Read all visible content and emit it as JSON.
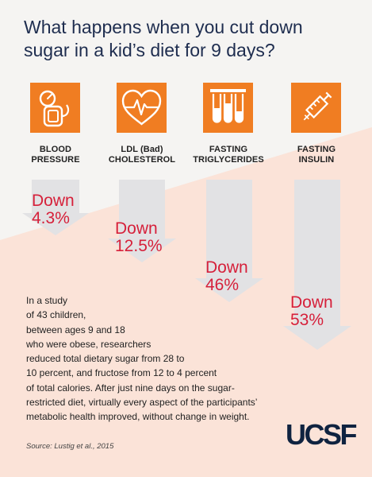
{
  "title": {
    "line1": "What happens when you cut down",
    "line2": "sugar in a kid’s diet for 9 days?"
  },
  "metrics": [
    {
      "label_line1": "BLOOD",
      "label_line2": "PRESSURE",
      "change_word": "Down",
      "change_value": "4.3%",
      "icon": "blood-pressure-cuff-icon"
    },
    {
      "label_line1": "LDL (Bad)",
      "label_line2": "CHOLESTEROL",
      "change_word": "Down",
      "change_value": "12.5%",
      "icon": "heart-heartbeat-icon"
    },
    {
      "label_line1": "FASTING",
      "label_line2": "TRIGLYCERIDES",
      "change_word": "Down",
      "change_value": "46%",
      "icon": "test-tubes-icon"
    },
    {
      "label_line1": "FASTING",
      "label_line2": "INSULIN",
      "change_word": "Down",
      "change_value": "53%",
      "icon": "syringe-icon"
    }
  ],
  "study_lines": [
    "In a study",
    "of 43 children,",
    "between ages 9 and 18",
    "who were obese, researchers",
    "reduced total dietary sugar from 28 to",
    "10 percent, and fructose from 12 to 4 percent",
    "of total calories. After just nine days on the sugar-",
    "restricted diet, virtually every aspect of the participants’",
    "metabolic health improved, without change in weight."
  ],
  "source": "Source: Lustig et al., 2015",
  "logo": "UCSF",
  "colors": {
    "background": "#f5f4f2",
    "peach_band": "#fbe3d8",
    "icon_orange": "#f07d22",
    "arrow_gray": "#e2e2e4",
    "down_red": "#d6203a",
    "title_navy": "#1e2d4f",
    "logo_navy": "#0f2340"
  }
}
